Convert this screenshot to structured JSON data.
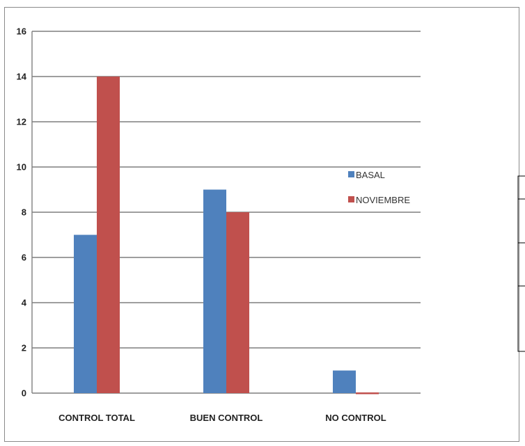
{
  "chart_data": {
    "type": "bar",
    "title": "",
    "xlabel": "",
    "ylabel": "",
    "categories": [
      "CONTROL TOTAL",
      "BUEN CONTROL",
      "NO CONTROL"
    ],
    "series": [
      {
        "name": "BASAL",
        "values": [
          7,
          9,
          1
        ],
        "color": "#4f81bd"
      },
      {
        "name": "NOVIEMBRE",
        "values": [
          14,
          8,
          0
        ],
        "color": "#c0504d"
      }
    ],
    "ylim": [
      0,
      16
    ],
    "yticks": [
      0,
      2,
      4,
      6,
      8,
      10,
      12,
      14,
      16
    ],
    "grid": true,
    "legend_position": "right"
  }
}
